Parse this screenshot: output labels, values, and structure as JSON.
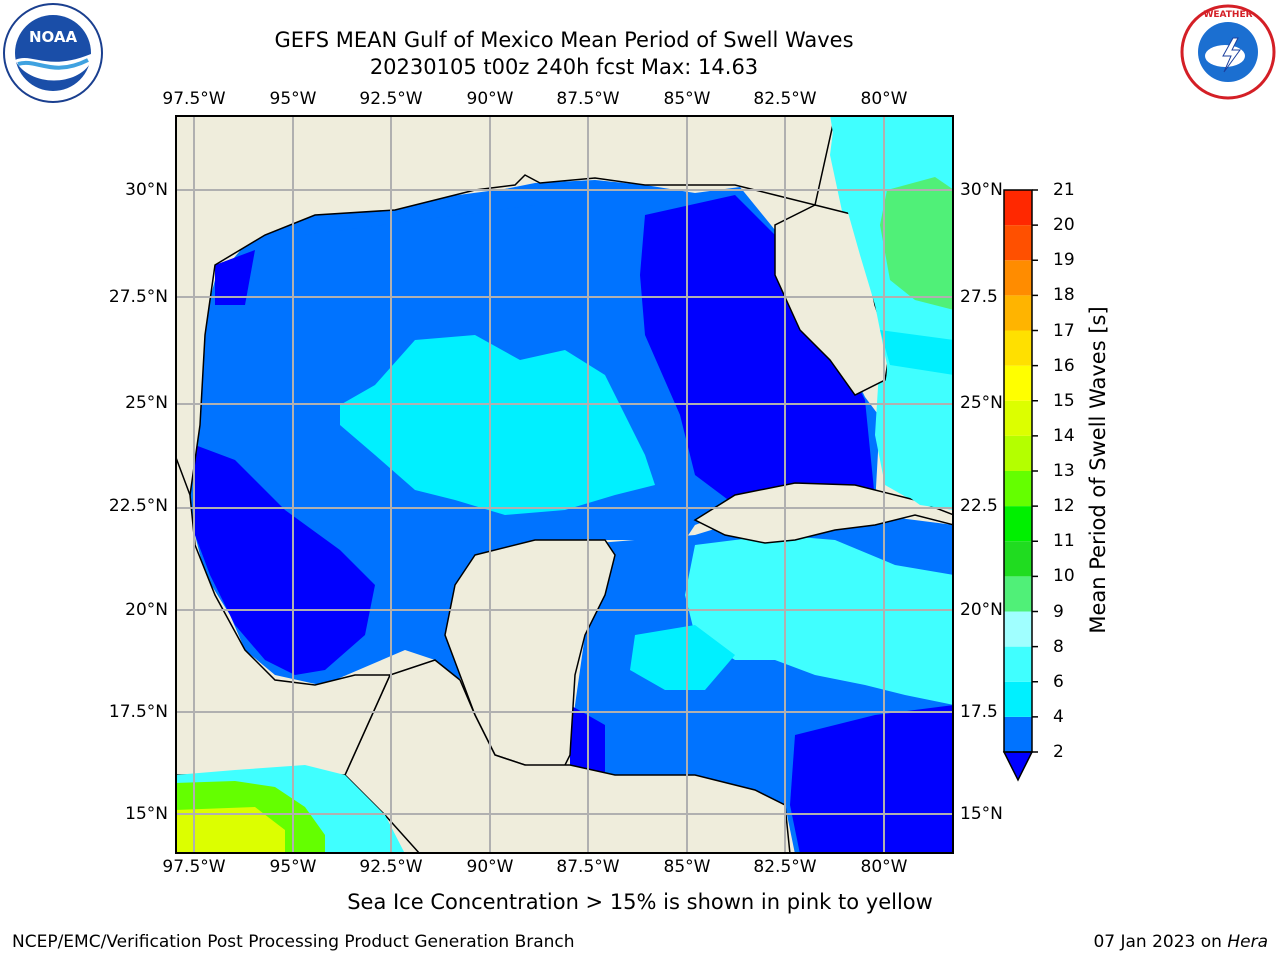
{
  "title": {
    "line1": "GEFS MEAN Gulf of Mexico Mean Period of Swell Waves",
    "line2": "20230105 t00z 240h fcst   Max: 14.63"
  },
  "axes": {
    "lon_labels": [
      "97.5°W",
      "95°W",
      "92.5°W",
      "90°W",
      "87.5°W",
      "85°W",
      "82.5°W",
      "80°W"
    ],
    "lat_labels": [
      "30°N",
      "27.5°N",
      "25°N",
      "22.5°N",
      "20°N",
      "17.5°N",
      "15°N"
    ],
    "lat_labels_right": [
      "30°N",
      "27.5",
      "25°N",
      "22.5",
      "20°N",
      "17.5",
      "15°N"
    ]
  },
  "colorbar": {
    "label": "Mean Period of Swell Waves [s]",
    "ticks": [
      "2",
      "4",
      "6",
      "8",
      "9",
      "10",
      "11",
      "12",
      "13",
      "14",
      "15",
      "16",
      "17",
      "18",
      "19",
      "20",
      "21"
    ],
    "colors": [
      "#0000ff",
      "#0073ff",
      "#00f0ff",
      "#40ffff",
      "#a0ffff",
      "#50f078",
      "#20dc20",
      "#00f000",
      "#64ff00",
      "#b4ff00",
      "#dcff00",
      "#ffff00",
      "#ffe000",
      "#ffb400",
      "#ff8c00",
      "#ff5000",
      "#ff2800",
      "#ff0000"
    ]
  },
  "map": {
    "land_color": "#efeddc",
    "ocean_colors": {
      "dark_blue": "#0000ff",
      "mid_blue": "#0073ff",
      "cyan": "#00f0ff",
      "light_cyan": "#40ffff",
      "green": "#50f078",
      "yellow_green": "#dcff00"
    }
  },
  "caption": "Sea Ice Concentration > 15% is shown in pink to yellow",
  "footer": {
    "left": "NCEP/EMC/Verification Post Processing Product Generation Branch",
    "right_prefix": "07 Jan 2023 on ",
    "right_italic": "Hera"
  },
  "logos": {
    "noaa": "NOAA",
    "nws_ring": "NATIONAL WEATHER SERVICE"
  }
}
